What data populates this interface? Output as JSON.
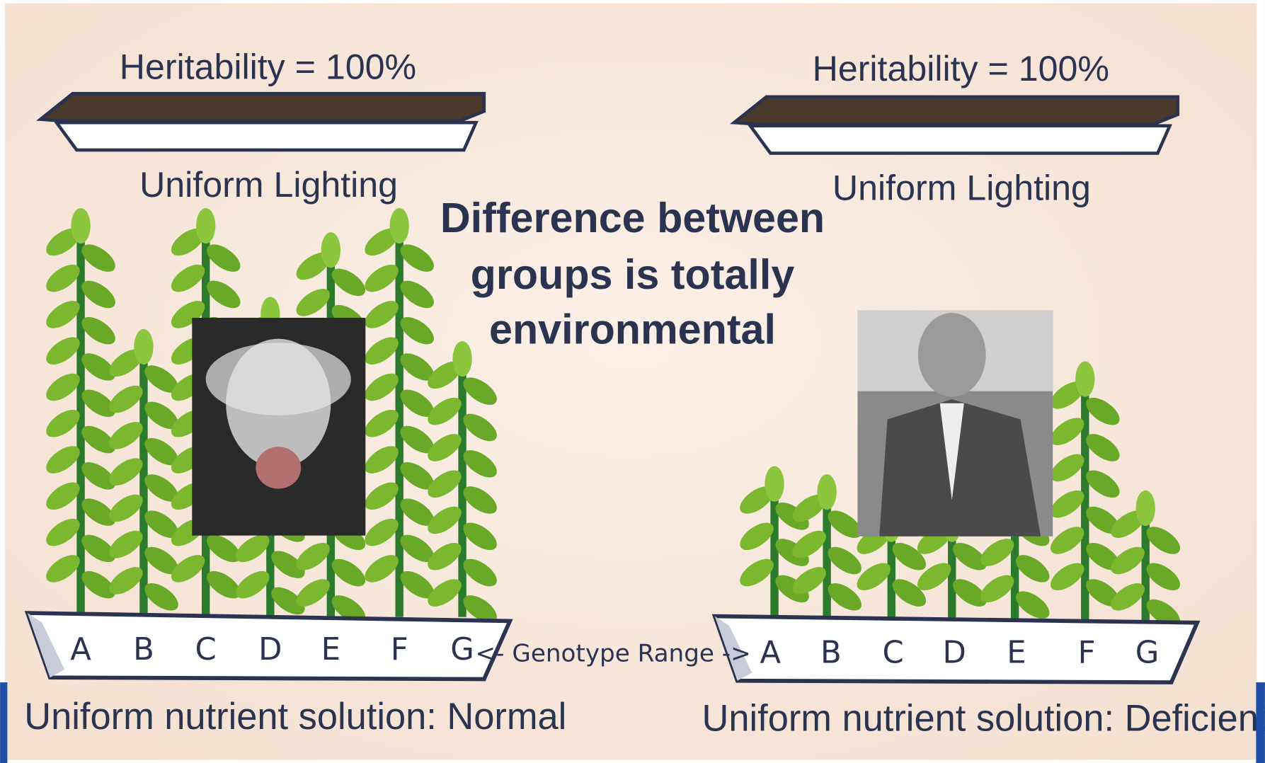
{
  "left": {
    "heritability": "Heritability = 100%",
    "lighting": "Uniform Lighting",
    "genotypes": [
      "A",
      "B",
      "C",
      "D",
      "E",
      "F",
      "G"
    ],
    "solution": "Uniform nutrient solution: Normal"
  },
  "center": {
    "title_lines": [
      "Difference between",
      "groups is totally",
      "environmental"
    ],
    "genotype_range": "<- Genotype Range ->"
  },
  "right": {
    "heritability": "Heritability = 100%",
    "lighting": "Uniform Lighting",
    "genotypes": [
      "A",
      "B",
      "C",
      "D",
      "E",
      "F",
      "G"
    ],
    "solution": "Uniform nutrient solution: Deficient"
  }
}
